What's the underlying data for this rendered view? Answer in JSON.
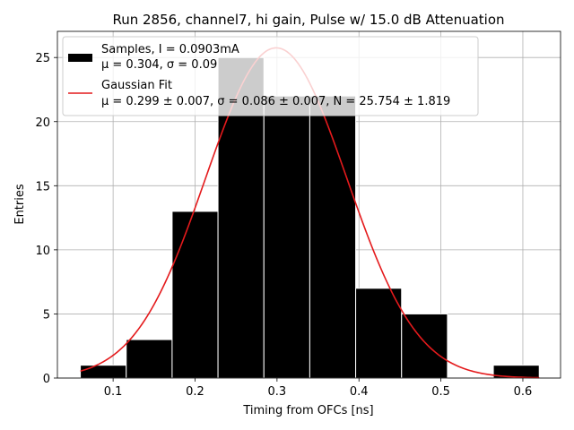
{
  "chart_data": {
    "type": "bar",
    "title": "Run 2856, channel7, hi gain, Pulse w/ 15.0 dB Attenuation",
    "xlabel": "Timing from OFCs [ns]",
    "ylabel": "Entries",
    "xlim": [
      0.032,
      0.646
    ],
    "ylim": [
      0,
      27.04
    ],
    "xticks": [
      0.1,
      0.2,
      0.3,
      0.4,
      0.5,
      0.6
    ],
    "xtick_labels": [
      "0.1",
      "0.2",
      "0.3",
      "0.4",
      "0.5",
      "0.6"
    ],
    "yticks": [
      0,
      5,
      10,
      15,
      20,
      25
    ],
    "ytick_labels": [
      "0",
      "5",
      "10",
      "15",
      "20",
      "25"
    ],
    "grid": true,
    "legend_position": "top-left",
    "histogram": {
      "name": "Samples, I = 0.0903mA",
      "name_line2": "μ = 0.304, σ = 0.09",
      "color": "#000000",
      "edge_color": "#ffffff",
      "bin_edges": [
        0.06,
        0.116,
        0.172,
        0.228,
        0.284,
        0.34,
        0.396,
        0.452,
        0.508,
        0.564,
        0.62
      ],
      "counts": [
        1,
        3,
        13,
        25,
        22,
        22,
        7,
        5,
        0,
        1
      ]
    },
    "fit": {
      "name": "Gaussian Fit",
      "name_line2": "μ = 0.299 ± 0.007, σ = 0.086 ± 0.007, N = 25.754 ± 1.819",
      "color": "#e41a1c",
      "mu": 0.299,
      "sigma": 0.086,
      "N": 25.754,
      "x_range": [
        0.06,
        0.62
      ]
    }
  }
}
